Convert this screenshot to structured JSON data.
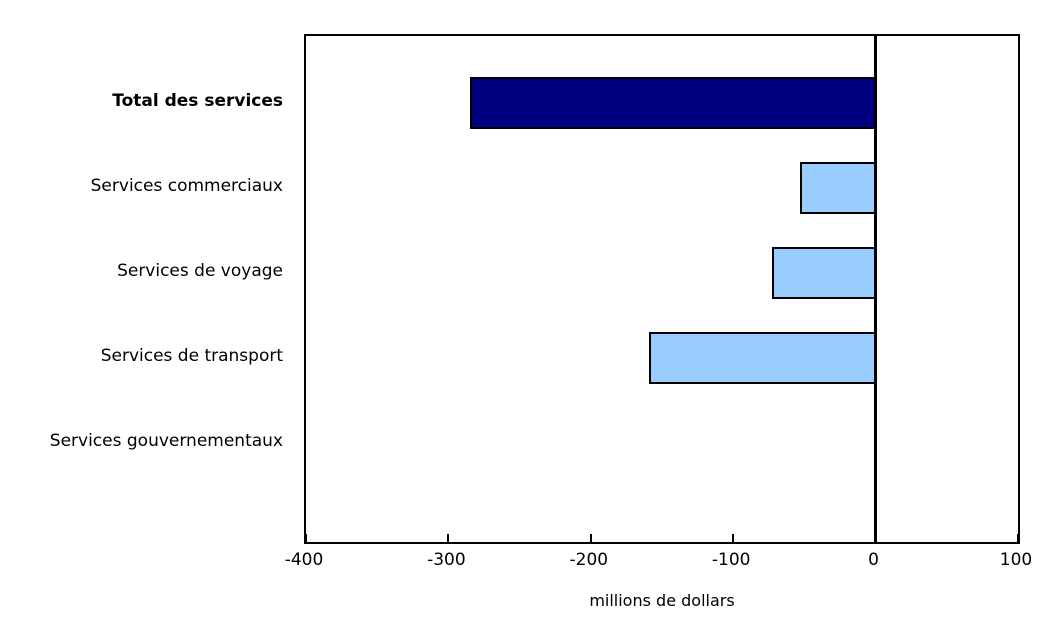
{
  "chart_data": {
    "type": "bar",
    "orientation": "horizontal",
    "title": "",
    "xlabel": "millions de dollars",
    "ylabel": "",
    "categories": [
      "Total des services",
      "Services commerciaux",
      "Services de voyage",
      "Services de transport",
      "Services gouvernementaux"
    ],
    "values": [
      -285,
      -53,
      -73,
      -159,
      0
    ],
    "bar_colors": [
      "#000080",
      "#99CCFF",
      "#99CCFF",
      "#99CCFF",
      "#99CCFF"
    ],
    "bold_categories": [
      true,
      false,
      false,
      false,
      false
    ],
    "bar_border_color": "#000000",
    "xlim": [
      -400,
      100
    ],
    "x_ticks": [
      -400,
      -300,
      -200,
      -100,
      0,
      100
    ],
    "x_tick_labels": [
      "-400",
      "-300",
      "-200",
      "-100",
      "0",
      "100"
    ],
    "grid": false,
    "legend": null,
    "zero_line": true,
    "background_color": "#ffffff",
    "axis_color": "#000000"
  }
}
